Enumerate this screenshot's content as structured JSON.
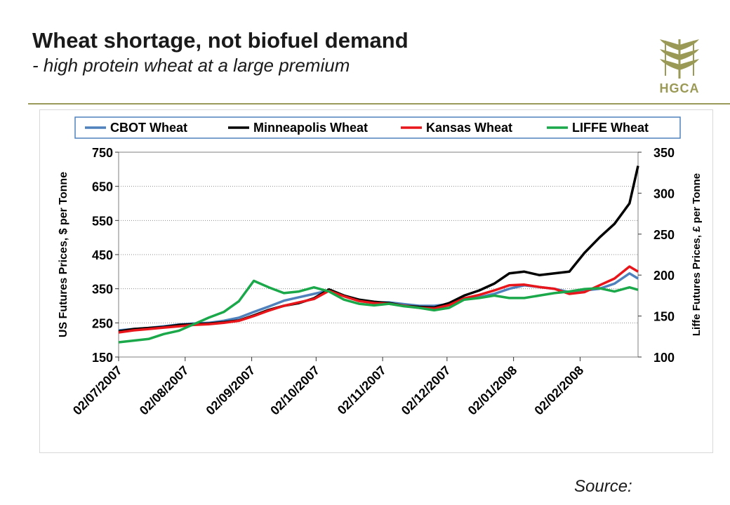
{
  "slide": {
    "title": "Wheat shortage, not biofuel demand",
    "subtitle": "- high protein wheat at a large premium",
    "logo_text": "HGCA",
    "source": "Source:"
  },
  "colors": {
    "cbot": "#4f81bd",
    "minneapolis": "#000000",
    "kansas": "#e8161b",
    "liffe": "#1aa84a",
    "rule": "#9a9a5a",
    "logo": "#9a9a56"
  },
  "chart_data": {
    "type": "line",
    "legend_position": "top",
    "grid": true,
    "x": [
      "02/07/2007",
      "09/07/2007",
      "16/07/2007",
      "23/07/2007",
      "30/07/2007",
      "06/08/2007",
      "13/08/2007",
      "20/08/2007",
      "27/08/2007",
      "03/09/2007",
      "10/09/2007",
      "17/09/2007",
      "24/09/2007",
      "01/10/2007",
      "08/10/2007",
      "15/10/2007",
      "22/10/2007",
      "29/10/2007",
      "05/11/2007",
      "12/11/2007",
      "19/11/2007",
      "26/11/2007",
      "03/12/2007",
      "10/12/2007",
      "17/12/2007",
      "24/12/2007",
      "31/12/2007",
      "07/01/2008",
      "14/01/2008",
      "21/01/2008",
      "28/01/2008",
      "04/02/2008",
      "11/02/2008",
      "18/02/2008",
      "25/02/2008",
      "29/02/2008"
    ],
    "xtick_labels": [
      "02/07/2007",
      "02/08/2007",
      "02/09/2007",
      "02/10/2007",
      "02/11/2007",
      "02/12/2007",
      "02/01/2008",
      "02/02/2008"
    ],
    "y_left": {
      "label": "US Futures Prices, $ per Tonne",
      "min": 150,
      "max": 750,
      "ticks": [
        150,
        250,
        350,
        450,
        550,
        650,
        750
      ]
    },
    "y_right": {
      "label": "Liffe Futures Prices, £ per Tonne",
      "min": 100,
      "max": 350,
      "ticks": [
        100,
        150,
        200,
        250,
        300,
        350
      ]
    },
    "series": [
      {
        "name": "CBOT Wheat",
        "axis": "left",
        "color_key": "cbot",
        "values": [
          228,
          232,
          235,
          240,
          245,
          248,
          250,
          256,
          265,
          282,
          298,
          315,
          325,
          335,
          345,
          330,
          315,
          310,
          310,
          305,
          300,
          300,
          305,
          318,
          325,
          335,
          350,
          360,
          355,
          350,
          340,
          345,
          350,
          365,
          395,
          380
        ]
      },
      {
        "name": "Minneapolis Wheat",
        "axis": "left",
        "color_key": "minneapolis",
        "values": [
          225,
          232,
          235,
          238,
          244,
          246,
          248,
          252,
          257,
          272,
          288,
          300,
          308,
          322,
          348,
          330,
          318,
          312,
          308,
          300,
          297,
          295,
          308,
          330,
          345,
          365,
          395,
          400,
          390,
          395,
          400,
          455,
          500,
          540,
          600,
          710
        ]
      },
      {
        "name": "Kansas Wheat",
        "axis": "left",
        "color_key": "kansas",
        "values": [
          222,
          228,
          232,
          236,
          240,
          244,
          246,
          250,
          256,
          270,
          286,
          300,
          310,
          320,
          344,
          328,
          314,
          308,
          306,
          300,
          294,
          292,
          302,
          322,
          332,
          345,
          360,
          362,
          355,
          350,
          335,
          340,
          360,
          380,
          415,
          400
        ]
      },
      {
        "name": "LIFFE Wheat",
        "axis": "right",
        "color_key": "liffe",
        "values": [
          118,
          120,
          122,
          128,
          132,
          140,
          148,
          155,
          168,
          193,
          185,
          178,
          180,
          185,
          180,
          170,
          165,
          163,
          165,
          162,
          160,
          157,
          160,
          170,
          172,
          175,
          172,
          172,
          175,
          178,
          180,
          183,
          184,
          180,
          185,
          182
        ]
      }
    ]
  }
}
